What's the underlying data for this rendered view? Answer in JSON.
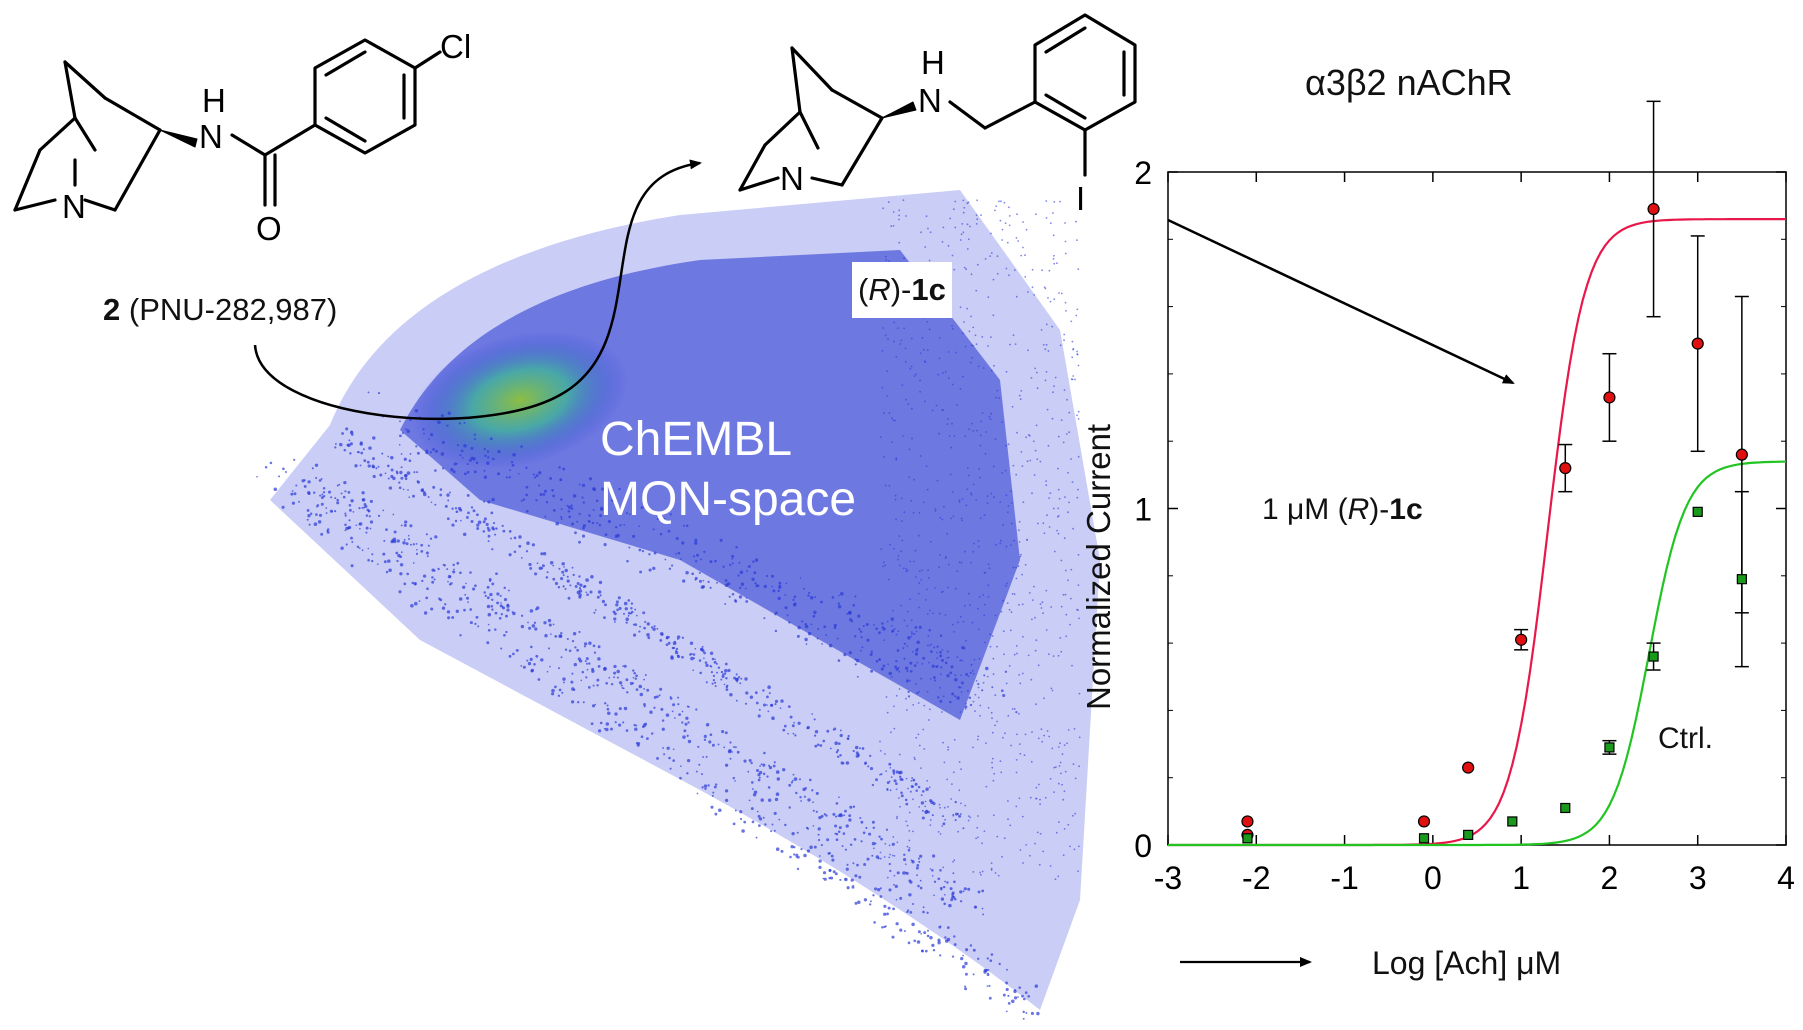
{
  "compound_2": {
    "number": "2",
    "name": "(PNU-282,987)",
    "atoms": {
      "n_amine": "N",
      "n_amide": "N",
      "h_amide": "H",
      "o": "O",
      "cl": "Cl"
    }
  },
  "compound_1c": {
    "stereo": "R",
    "prefix_open": "(",
    "prefix_close": ")-",
    "number": "1c",
    "atoms": {
      "n_amine": "N",
      "n_amide": "N",
      "h_amide": "H",
      "i": "I"
    }
  },
  "space": {
    "line1": "ChEMBL",
    "line2": "MQN-space"
  },
  "chart_data": {
    "type": "scatter",
    "title": "α3β2 nAChR",
    "xlabel": "Log [Ach] μM",
    "ylabel": "Normalized Current",
    "xlim": [
      -3,
      4
    ],
    "ylim": [
      0,
      2
    ],
    "x_ticks": [
      "-3",
      "-2",
      "-1",
      "0",
      "1",
      "2",
      "3",
      "4"
    ],
    "y_ticks": [
      "0",
      "1",
      "2"
    ],
    "grid": false,
    "annotation_treated": {
      "pre": "1 μM (",
      "italic": "R",
      "mid": ")-",
      "bold": "1c"
    },
    "annotation_ctrl": "Ctrl.",
    "series": [
      {
        "color": "#e8184a",
        "marker": "circle",
        "points": [
          {
            "x": -2.1,
            "y": 0.07,
            "err": 0
          },
          {
            "x": -2.1,
            "y": 0.03,
            "err": 0
          },
          {
            "x": -0.1,
            "y": 0.07,
            "err": 0
          },
          {
            "x": 0.4,
            "y": 0.23,
            "err": 0
          },
          {
            "x": 1.0,
            "y": 0.61,
            "err": 0.03
          },
          {
            "x": 1.5,
            "y": 1.12,
            "err": 0.07
          },
          {
            "x": 2.0,
            "y": 1.33,
            "err": 0.13
          },
          {
            "x": 2.5,
            "y": 1.89,
            "err": 0.32
          },
          {
            "x": 3.0,
            "y": 1.49,
            "err": 0.32
          },
          {
            "x": 3.5,
            "y": 1.16,
            "err": 0.47
          }
        ],
        "fit": {
          "bottom": 0,
          "top": 1.86,
          "ec50": 1.3,
          "hill": 1.3
        }
      },
      {
        "color": "#22c422",
        "marker": "square",
        "points": [
          {
            "x": -2.1,
            "y": 0.02,
            "err": 0
          },
          {
            "x": -0.1,
            "y": 0.02,
            "err": 0
          },
          {
            "x": 0.4,
            "y": 0.03,
            "err": 0
          },
          {
            "x": 0.9,
            "y": 0.07,
            "err": 0
          },
          {
            "x": 1.5,
            "y": 0.11,
            "err": 0
          },
          {
            "x": 2.0,
            "y": 0.29,
            "err": 0.02
          },
          {
            "x": 2.5,
            "y": 0.56,
            "err": 0.04
          },
          {
            "x": 3.0,
            "y": 0.99,
            "err": 0
          },
          {
            "x": 3.5,
            "y": 0.79,
            "err": 0.26
          }
        ],
        "fit": {
          "bottom": 0,
          "top": 1.14,
          "ec50": 2.45,
          "hill": 1.3
        }
      }
    ]
  }
}
